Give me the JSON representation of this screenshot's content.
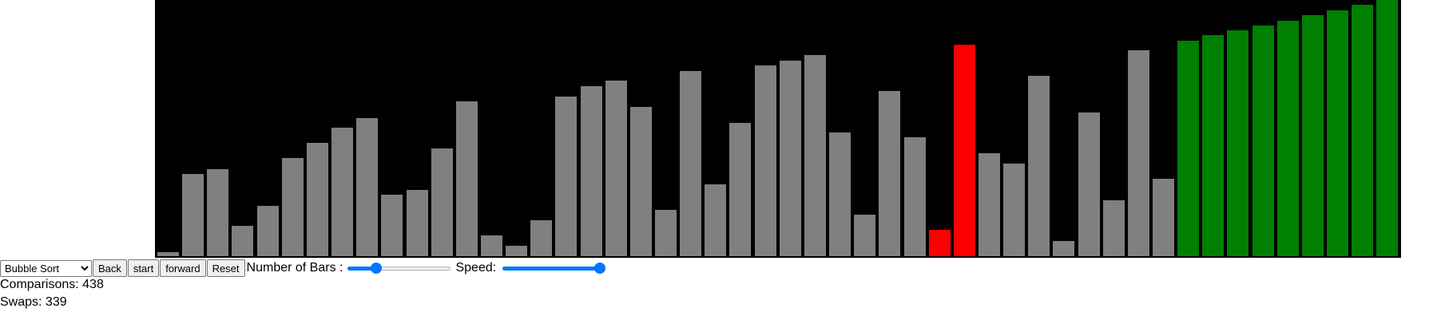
{
  "visualizer": {
    "bars": [
      {
        "value": 5,
        "state": "default"
      },
      {
        "value": 104,
        "state": "default"
      },
      {
        "value": 110,
        "state": "default"
      },
      {
        "value": 38,
        "state": "default"
      },
      {
        "value": 64,
        "state": "default"
      },
      {
        "value": 124,
        "state": "default"
      },
      {
        "value": 143,
        "state": "default"
      },
      {
        "value": 163,
        "state": "default"
      },
      {
        "value": 175,
        "state": "default"
      },
      {
        "value": 78,
        "state": "default"
      },
      {
        "value": 84,
        "state": "default"
      },
      {
        "value": 136,
        "state": "default"
      },
      {
        "value": 196,
        "state": "default"
      },
      {
        "value": 26,
        "state": "default"
      },
      {
        "value": 13,
        "state": "default"
      },
      {
        "value": 45,
        "state": "default"
      },
      {
        "value": 202,
        "state": "default"
      },
      {
        "value": 215,
        "state": "default"
      },
      {
        "value": 222,
        "state": "default"
      },
      {
        "value": 189,
        "state": "default"
      },
      {
        "value": 59,
        "state": "default"
      },
      {
        "value": 234,
        "state": "default"
      },
      {
        "value": 91,
        "state": "default"
      },
      {
        "value": 169,
        "state": "default"
      },
      {
        "value": 241,
        "state": "default"
      },
      {
        "value": 247,
        "state": "default"
      },
      {
        "value": 254,
        "state": "default"
      },
      {
        "value": 156,
        "state": "default"
      },
      {
        "value": 52,
        "state": "default"
      },
      {
        "value": 209,
        "state": "default"
      },
      {
        "value": 150,
        "state": "default"
      },
      {
        "value": 33,
        "state": "comparing"
      },
      {
        "value": 267,
        "state": "comparing"
      },
      {
        "value": 130,
        "state": "default"
      },
      {
        "value": 117,
        "state": "default"
      },
      {
        "value": 228,
        "state": "default"
      },
      {
        "value": 19,
        "state": "default"
      },
      {
        "value": 182,
        "state": "default"
      },
      {
        "value": 71,
        "state": "default"
      },
      {
        "value": 260,
        "state": "default"
      },
      {
        "value": 98,
        "state": "default"
      },
      {
        "value": 273,
        "state": "sorted"
      },
      {
        "value": 280,
        "state": "sorted"
      },
      {
        "value": 286,
        "state": "sorted"
      },
      {
        "value": 292,
        "state": "sorted"
      },
      {
        "value": 298,
        "state": "sorted"
      },
      {
        "value": 305,
        "state": "sorted"
      },
      {
        "value": 311,
        "state": "sorted"
      },
      {
        "value": 318,
        "state": "sorted"
      },
      {
        "value": 324,
        "state": "sorted"
      }
    ],
    "max_value": 324,
    "colors": {
      "background": "#000000",
      "default": "#808080",
      "comparing": "#ff0000",
      "sorted": "#008000"
    }
  },
  "controls": {
    "algorithm_select": {
      "selected": "Bubble Sort",
      "icon": "chevron-down-icon"
    },
    "back_label": "Back",
    "start_label": "start",
    "forward_label": "forward",
    "reset_label": "Reset",
    "bars_label": "Number of Bars :",
    "bars_slider_fraction": 0.25,
    "speed_label": "Speed:",
    "speed_slider_fraction": 1.0,
    "accent_color": "#0075ff"
  },
  "stats": {
    "comparisons_text": "Comparisons: 438",
    "swaps_text": "Swaps: 339"
  }
}
